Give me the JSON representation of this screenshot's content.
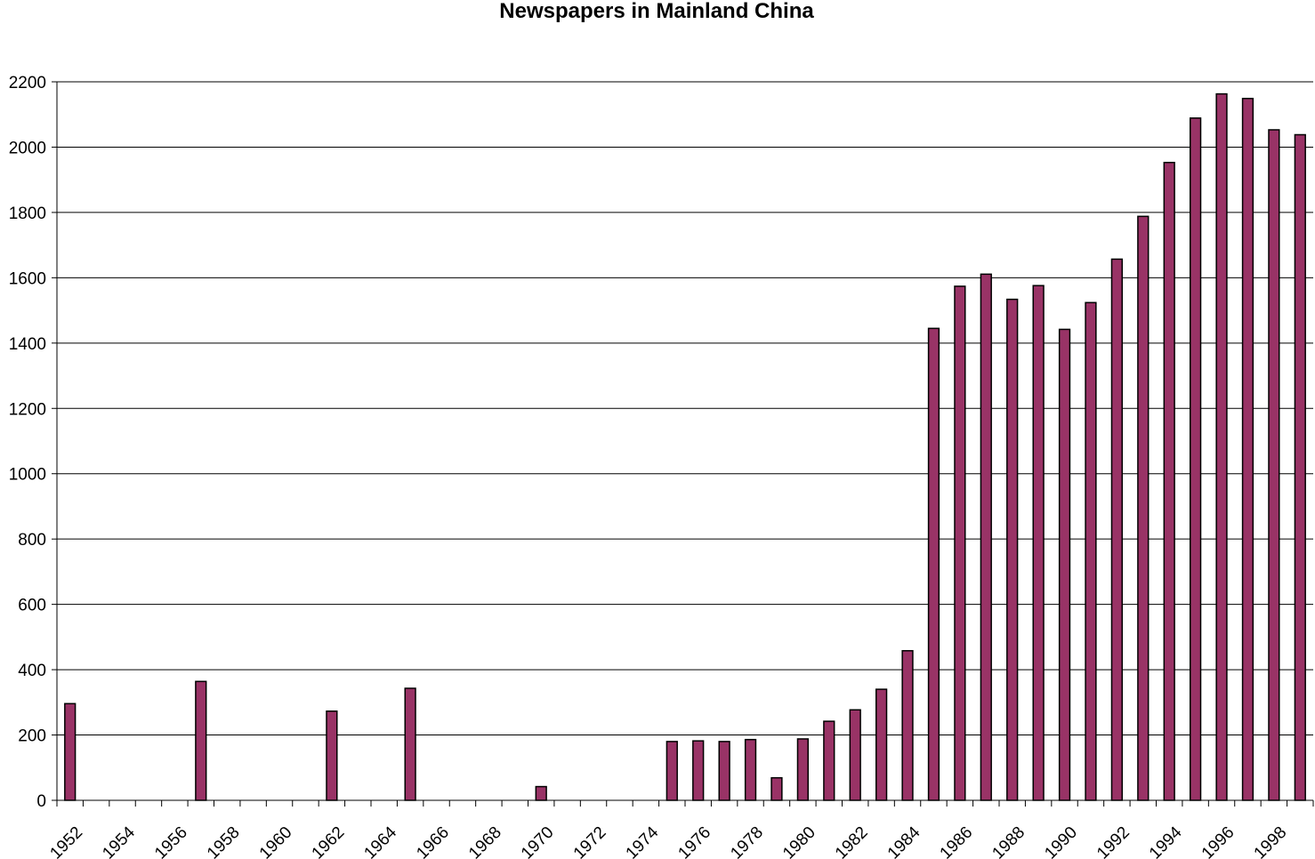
{
  "chart_data": {
    "type": "bar",
    "title": "Newspapers in Mainland China",
    "xlabel": "",
    "ylabel": "",
    "ylim": [
      0,
      2200
    ],
    "yticks": [
      0,
      200,
      400,
      600,
      800,
      1000,
      1200,
      1400,
      1600,
      1800,
      2000,
      2200
    ],
    "grid": true,
    "legend": "none",
    "bar_color": "#993366",
    "x_tick_labels": [
      "1952",
      "1954",
      "1956",
      "1958",
      "1960",
      "1962",
      "1964",
      "1966",
      "1968",
      "1970",
      "1972",
      "1974",
      "1976",
      "1978",
      "1980",
      "1982",
      "1984",
      "1986",
      "1988",
      "1990",
      "1992",
      "1994",
      "1996",
      "1998"
    ],
    "categories": [
      "1952",
      "1953",
      "1954",
      "1955",
      "1956",
      "1957",
      "1958",
      "1959",
      "1960",
      "1961",
      "1962",
      "1963",
      "1964",
      "1965",
      "1966",
      "1967",
      "1968",
      "1969",
      "1970",
      "1971",
      "1972",
      "1973",
      "1974",
      "1975",
      "1976",
      "1977",
      "1978",
      "1979",
      "1980",
      "1981",
      "1982",
      "1983",
      "1984",
      "1985",
      "1986",
      "1987",
      "1988",
      "1989",
      "1990",
      "1991",
      "1992",
      "1993",
      "1994",
      "1995",
      "1996",
      "1997",
      "1998",
      "1999"
    ],
    "values": [
      296,
      0,
      0,
      0,
      0,
      364,
      0,
      0,
      0,
      0,
      273,
      0,
      0,
      343,
      0,
      0,
      0,
      0,
      42,
      0,
      0,
      0,
      0,
      180,
      182,
      180,
      186,
      69,
      188,
      242,
      277,
      340,
      458,
      1445,
      1574,
      1611,
      1534,
      1576,
      1442,
      1524,
      1657,
      1788,
      1953,
      2089,
      2163,
      2149,
      2053,
      2038
    ]
  }
}
